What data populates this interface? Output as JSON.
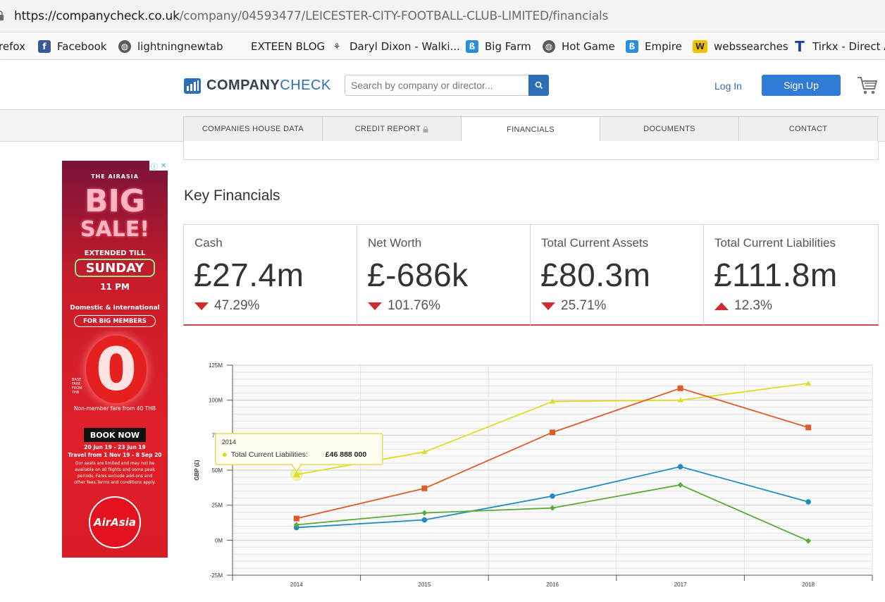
{
  "browser": {
    "url_host": "https://companycheck.co.uk",
    "url_path": "/company/04593477/LEICESTER-CITY-FOOTBALL-CLUB-LIMITED/financials",
    "bookmarks": [
      "refox",
      "Facebook",
      "lightningnewtab",
      "EXTEEN BLOG",
      "Daryl Dixon - Walki...",
      "Big Farm",
      "Hot Game",
      "Empire",
      "webssearches",
      "Tirkx - Direct Ar"
    ]
  },
  "header": {
    "logo_bold": "COMPANY",
    "logo_light": "CHECK",
    "search_placeholder": "Search by company or director...",
    "login_label": "Log In",
    "signup_label": "Sign Up"
  },
  "tabs": [
    {
      "label": "COMPANIES HOUSE DATA",
      "active": false
    },
    {
      "label": "CREDIT REPORT",
      "active": false
    },
    {
      "label": "FINANCIALS",
      "active": true
    },
    {
      "label": "DOCUMENTS",
      "active": false
    },
    {
      "label": "CONTACT",
      "active": false
    }
  ],
  "ad": {
    "brand_small": "THE AIRASIA",
    "big": "BIG",
    "sale": "SALE!",
    "extended": "EXTENDED TILL",
    "sunday": "SUNDAY",
    "time": "11 PM",
    "domestic": "Domestic & International",
    "members": "FOR BIG MEMBERS",
    "zero": "0",
    "base_fare": "BASE FARE FROM THB",
    "nonmember": "Non-member fare from 40 THB",
    "book": "BOOK NOW",
    "dates1": "20 Jun 19 - 23 Jun 19",
    "dates2": "Travel from 1 Nov 19 - 8 Sep 20",
    "fine1": "Our seats are limited and may not be",
    "fine2": "available on all flights and some peak",
    "fine3": "periods. Fares exclude add-ons and",
    "fine4": "other fees.Terms and conditions apply.",
    "airasia": "AirAsia"
  },
  "key_financials": {
    "title": "Key Financials",
    "cards": [
      {
        "label": "Cash",
        "value": "£27.4m",
        "direction": "down",
        "change": "47.29%"
      },
      {
        "label": "Net Worth",
        "value": "£-686k",
        "direction": "down",
        "change": "101.76%"
      },
      {
        "label": "Total Current Assets",
        "value": "£80.3m",
        "direction": "down",
        "change": "25.71%"
      },
      {
        "label": "Total Current Liabilities",
        "value": "£111.8m",
        "direction": "up",
        "change": "12.3%"
      }
    ]
  },
  "chart_data": {
    "type": "line",
    "ylabel": "GBP (£)",
    "xlabel": "",
    "x": [
      "2014",
      "2015",
      "2016",
      "2017",
      "2018"
    ],
    "ylim": [
      -25,
      125
    ],
    "ytick_labels": [
      "125M",
      "100M",
      "75M",
      "50M",
      "25M",
      "0M",
      "-25M"
    ],
    "grid": true,
    "series": [
      {
        "color": "#dddd22",
        "marker": "triangle",
        "values": [
          46.9,
          63,
          99,
          100,
          112
        ]
      },
      {
        "color": "#e05a26",
        "marker": "square",
        "values": [
          15.5,
          37,
          77,
          108.5,
          80.5
        ]
      },
      {
        "color": "#1f8dbf",
        "marker": "circle",
        "values": [
          9,
          14.5,
          31.5,
          52.5,
          27.4
        ]
      },
      {
        "color": "#5aab35",
        "marker": "diamond",
        "values": [
          11,
          19.5,
          23,
          39.5,
          -0.5
        ]
      }
    ],
    "tooltip": {
      "x": "2014",
      "label": "Total Current Liabilities:",
      "value": "£46 888 000",
      "series_index": 0
    }
  }
}
